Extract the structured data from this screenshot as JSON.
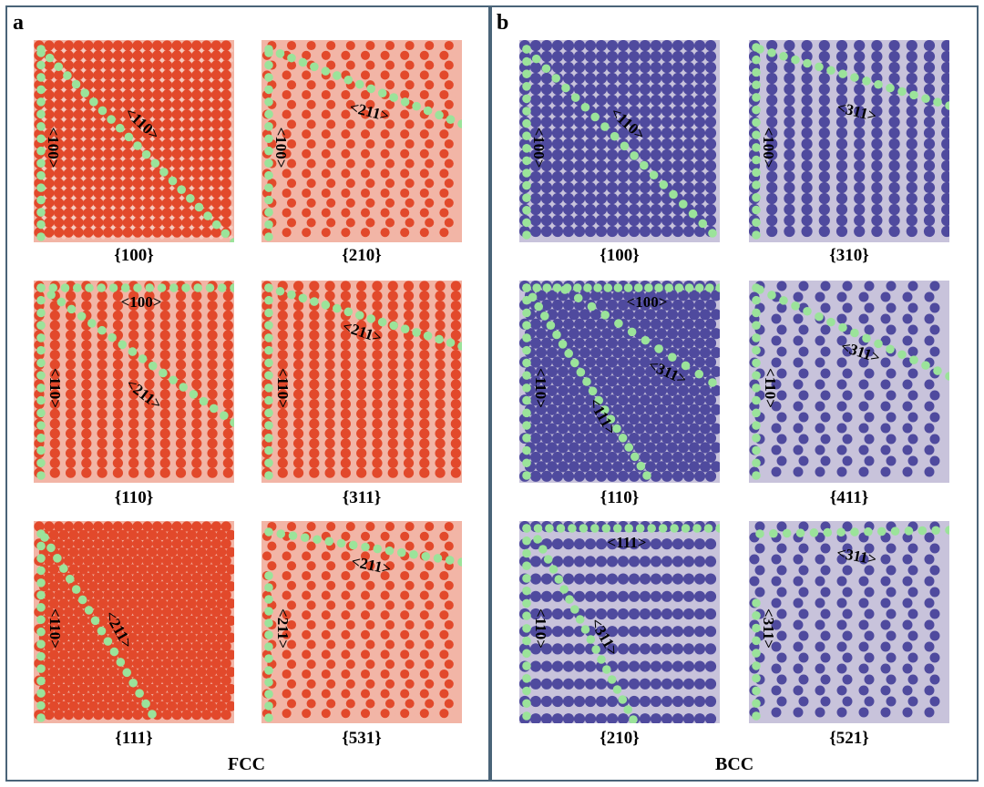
{
  "panels": [
    {
      "letter": "a",
      "structure": "FCC",
      "colors": {
        "primary": "#e2492b",
        "secondary": "#f2b5a6",
        "edge": "#9be39a"
      },
      "surfaces": [
        {
          "plane": "{100}",
          "labels": [
            "<100>",
            "<110>"
          ]
        },
        {
          "plane": "{210}",
          "labels": [
            "<100>",
            "<211>"
          ]
        },
        {
          "plane": "{110}",
          "labels": [
            "<100>",
            "<110>",
            "<211>"
          ]
        },
        {
          "plane": "{311}",
          "labels": [
            "<110>",
            "<211>"
          ]
        },
        {
          "plane": "{111}",
          "labels": [
            "<110>",
            "<211>"
          ]
        },
        {
          "plane": "{531}",
          "labels": [
            "<211>",
            "<211>"
          ]
        }
      ]
    },
    {
      "letter": "b",
      "structure": "BCC",
      "colors": {
        "primary": "#4f4a9e",
        "secondary": "#c8c3db",
        "edge": "#9be39a"
      },
      "surfaces": [
        {
          "plane": "{100}",
          "labels": [
            "<100>",
            "<110>"
          ]
        },
        {
          "plane": "{310}",
          "labels": [
            "<100>",
            "<311>"
          ]
        },
        {
          "plane": "{110}",
          "labels": [
            "<100>",
            "<110>",
            "<311>",
            "<111>"
          ]
        },
        {
          "plane": "{411}",
          "labels": [
            "<110>",
            "<311>"
          ]
        },
        {
          "plane": "{210}",
          "labels": [
            "<111>",
            "<110>",
            "<311>"
          ]
        },
        {
          "plane": "{521}",
          "labels": [
            "<311>",
            "<311>"
          ]
        }
      ]
    }
  ]
}
